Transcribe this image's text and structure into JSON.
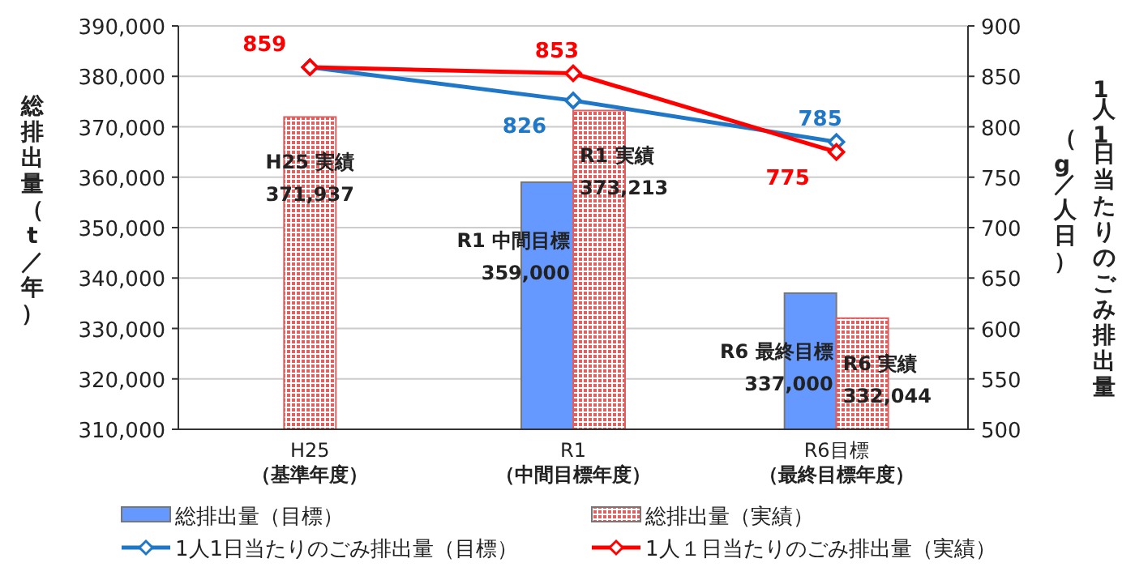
{
  "chart_data": {
    "type": "bar",
    "categories": [
      "H25（基準年度）",
      "R1（中間目標年度）",
      "R6目標（最終目標年度）"
    ],
    "ylabel": "総排出量（t／年）",
    "y2label": "1人1日当たりのごみ排出量（g／人日）",
    "ylim": [
      310000,
      390000
    ],
    "yticks": [
      {
        "value": 310000,
        "label": "310,000"
      },
      {
        "value": 320000,
        "label": "320,000"
      },
      {
        "value": 330000,
        "label": "330,000"
      },
      {
        "value": 340000,
        "label": "340,000"
      },
      {
        "value": 350000,
        "label": "350,000"
      },
      {
        "value": 360000,
        "label": "360,000"
      },
      {
        "value": 370000,
        "label": "370,000"
      },
      {
        "value": 380000,
        "label": "380,000"
      },
      {
        "value": 390000,
        "label": "390,000"
      }
    ],
    "y2lim": [
      500,
      900
    ],
    "y2ticks": [
      500,
      550,
      600,
      650,
      700,
      750,
      800,
      850,
      900
    ],
    "grid": "y",
    "legend": "bottom",
    "marker": "diamond",
    "series": [
      {
        "name": "総排出量（目標）",
        "color": "#6699ff",
        "values": [
          null,
          359000,
          337000
        ],
        "value_labels": [
          null,
          "R1 中間目標\n359,000",
          "R6 最終目標\n337,000"
        ]
      },
      {
        "name": "総排出量（実績）",
        "color": "#e06060",
        "values": [
          371937,
          373213,
          332044
        ],
        "value_labels": [
          "H25 実績\n371,937",
          "R1 実績\n373,213",
          "R6 実績\n332,044"
        ]
      },
      {
        "name": "1人1日当たりのごみ排出量（目標）",
        "type": "line",
        "axis": "y2",
        "color": "#1f77c8",
        "values": [
          859,
          826,
          785
        ],
        "value_labels": [
          null,
          "826",
          "785"
        ]
      },
      {
        "name": "1人１日当たりのごみ排出量（実績）",
        "type": "line",
        "axis": "y2",
        "color": "#ff0000",
        "values": [
          859,
          853,
          775
        ],
        "value_labels": [
          "859",
          "853",
          "775"
        ]
      }
    ]
  }
}
